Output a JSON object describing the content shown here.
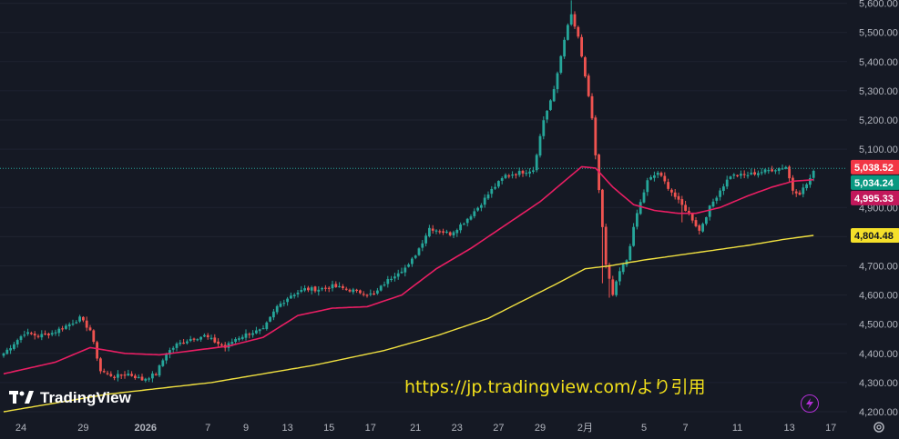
{
  "source_note": "https://jp.tradingview.com/より引用",
  "logo_text": "TradingView",
  "icons": {
    "logo": "tradingview-logo-icon",
    "flash": "lightning-icon",
    "settings": "gear-icon"
  },
  "colors": {
    "background": "#151924",
    "grid": "#1f2330",
    "up": "#26a69a",
    "down": "#ef5350",
    "ma_short": "#e91e63",
    "ma_long": "#f0e040",
    "last_price_line": "#26a69a",
    "source_note": "#f2e01b"
  },
  "chart_data": {
    "type": "candlestick",
    "y_axis": {
      "ticks": [
        "5,600.00",
        "5,500.00",
        "5,400.00",
        "5,300.00",
        "5,200.00",
        "5,100.00",
        "4,900.00",
        "4,800.00",
        "4,700.00",
        "4,600.00",
        "4,500.00",
        "4,400.00",
        "4,300.00",
        "4,200.00"
      ],
      "tick_values": [
        5600,
        5500,
        5400,
        5300,
        5200,
        5100,
        4900,
        4800,
        4700,
        4600,
        4500,
        4400,
        4300,
        4200
      ],
      "range": [
        4200,
        5600
      ]
    },
    "x_axis": {
      "labels": [
        "24",
        "29",
        "2026",
        "7",
        "9",
        "13",
        "15",
        "17",
        "21",
        "23",
        "27",
        "29",
        "2月",
        "5",
        "7",
        "11",
        "13",
        "17"
      ],
      "label_index": [
        5,
        23,
        41,
        59,
        70,
        82,
        94,
        106,
        119,
        131,
        143,
        155,
        168,
        185,
        197,
        212,
        227,
        239
      ],
      "bold": [
        "2026"
      ]
    },
    "price_tags": [
      {
        "label": "5,038.52",
        "value": 5038.52,
        "bg": "#f23645",
        "fg": "#ffffff"
      },
      {
        "label": "5,034.24",
        "value": 5034.24,
        "bg": "#089981",
        "fg": "#ffffff"
      },
      {
        "label": "4,995.33",
        "value": 4995.33,
        "bg": "#c2185b",
        "fg": "#ffffff"
      },
      {
        "label": "4,804.48",
        "value": 4804.48,
        "bg": "#f5e02a",
        "fg": "#131722"
      }
    ],
    "last_price": 5034.24,
    "anchors": [
      [
        0,
        4400
      ],
      [
        6,
        4470
      ],
      [
        10,
        4460
      ],
      [
        14,
        4470
      ],
      [
        19,
        4500
      ],
      [
        22,
        4520
      ],
      [
        25,
        4480
      ],
      [
        28,
        4340
      ],
      [
        32,
        4320
      ],
      [
        36,
        4330
      ],
      [
        40,
        4310
      ],
      [
        44,
        4330
      ],
      [
        47,
        4400
      ],
      [
        50,
        4430
      ],
      [
        54,
        4450
      ],
      [
        58,
        4460
      ],
      [
        61,
        4440
      ],
      [
        64,
        4420
      ],
      [
        67,
        4450
      ],
      [
        71,
        4470
      ],
      [
        75,
        4480
      ],
      [
        79,
        4560
      ],
      [
        83,
        4600
      ],
      [
        87,
        4620
      ],
      [
        91,
        4620
      ],
      [
        95,
        4630
      ],
      [
        99,
        4620
      ],
      [
        103,
        4610
      ],
      [
        107,
        4600
      ],
      [
        110,
        4640
      ],
      [
        114,
        4680
      ],
      [
        117,
        4700
      ],
      [
        120,
        4760
      ],
      [
        123,
        4830
      ],
      [
        126,
        4820
      ],
      [
        129,
        4810
      ],
      [
        133,
        4850
      ],
      [
        137,
        4900
      ],
      [
        141,
        4960
      ],
      [
        145,
        5010
      ],
      [
        149,
        5020
      ],
      [
        153,
        5030
      ],
      [
        156,
        5200
      ],
      [
        159,
        5300
      ],
      [
        162,
        5480
      ],
      [
        164,
        5560
      ],
      [
        166,
        5480
      ],
      [
        168,
        5350
      ],
      [
        170,
        5200
      ],
      [
        172,
        4960
      ],
      [
        174,
        4700
      ],
      [
        176,
        4600
      ],
      [
        178,
        4680
      ],
      [
        180,
        4720
      ],
      [
        183,
        4880
      ],
      [
        186,
        4990
      ],
      [
        189,
        5020
      ],
      [
        192,
        4970
      ],
      [
        195,
        4920
      ],
      [
        198,
        4880
      ],
      [
        201,
        4820
      ],
      [
        204,
        4900
      ],
      [
        207,
        4960
      ],
      [
        210,
        5010
      ],
      [
        214,
        5010
      ],
      [
        218,
        5020
      ],
      [
        222,
        5030
      ],
      [
        226,
        5040
      ],
      [
        228,
        4960
      ],
      [
        230,
        4950
      ],
      [
        232,
        4980
      ],
      [
        234,
        5020
      ]
    ],
    "ma_short": [
      [
        0,
        4330
      ],
      [
        15,
        4370
      ],
      [
        25,
        4420
      ],
      [
        35,
        4400
      ],
      [
        45,
        4395
      ],
      [
        55,
        4410
      ],
      [
        65,
        4425
      ],
      [
        75,
        4455
      ],
      [
        85,
        4530
      ],
      [
        95,
        4555
      ],
      [
        105,
        4560
      ],
      [
        115,
        4600
      ],
      [
        125,
        4690
      ],
      [
        135,
        4760
      ],
      [
        145,
        4840
      ],
      [
        155,
        4920
      ],
      [
        162,
        4990
      ],
      [
        167,
        5040
      ],
      [
        171,
        5035
      ],
      [
        176,
        4970
      ],
      [
        182,
        4910
      ],
      [
        188,
        4890
      ],
      [
        195,
        4880
      ],
      [
        200,
        4880
      ],
      [
        207,
        4900
      ],
      [
        215,
        4940
      ],
      [
        222,
        4970
      ],
      [
        228,
        4990
      ],
      [
        234,
        4995.33
      ]
    ],
    "ma_long": [
      [
        0,
        4200
      ],
      [
        30,
        4260
      ],
      [
        60,
        4300
      ],
      [
        90,
        4360
      ],
      [
        110,
        4410
      ],
      [
        125,
        4460
      ],
      [
        140,
        4520
      ],
      [
        150,
        4580
      ],
      [
        160,
        4640
      ],
      [
        168,
        4690
      ],
      [
        175,
        4700
      ],
      [
        185,
        4720
      ],
      [
        200,
        4745
      ],
      [
        215,
        4770
      ],
      [
        225,
        4790
      ],
      [
        234,
        4804.48
      ]
    ]
  }
}
